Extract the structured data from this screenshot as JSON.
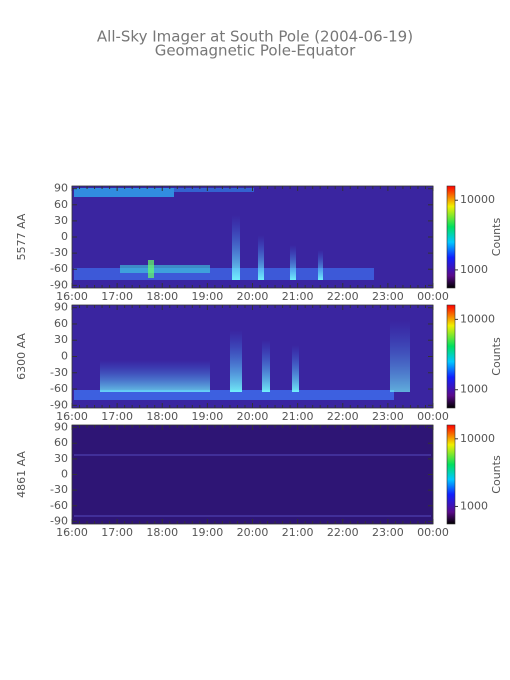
{
  "title": "All-Sky Imager at South Pole (2004-06-19)",
  "subtitle": "Geomagnetic Pole-Equator",
  "chart_data": [
    {
      "type": "heatmap",
      "ylabel": "5577 AA",
      "xticks": [
        "16:00",
        "17:00",
        "18:00",
        "19:00",
        "20:00",
        "21:00",
        "22:00",
        "23:00",
        "00:00"
      ],
      "ylim": [
        -95,
        95
      ],
      "yticks": [
        90,
        60,
        30,
        0,
        -30,
        -60,
        -90
      ],
      "colorbar_label": "Counts",
      "colorbar_log": true,
      "colorbar_lim": [
        550,
        16000
      ],
      "colorbar_ticks": [
        1000,
        10000
      ]
    },
    {
      "type": "heatmap",
      "ylabel": "6300 AA",
      "xticks": [
        "16:00",
        "17:00",
        "18:00",
        "19:00",
        "20:00",
        "21:00",
        "22:00",
        "23:00",
        "00:00"
      ],
      "ylim": [
        -95,
        95
      ],
      "yticks": [
        90,
        60,
        30,
        0,
        -30,
        -60,
        -90
      ],
      "colorbar_label": "Counts",
      "colorbar_log": true,
      "colorbar_lim": [
        550,
        16000
      ],
      "colorbar_ticks": [
        1000,
        10000
      ]
    },
    {
      "type": "heatmap",
      "ylabel": "4861 AA",
      "xticks": [
        "16:00",
        "17:00",
        "18:00",
        "19:00",
        "20:00",
        "21:00",
        "22:00",
        "23:00",
        "00:00"
      ],
      "ylim": [
        -95,
        95
      ],
      "yticks": [
        90,
        60,
        30,
        0,
        -30,
        -60,
        -90
      ],
      "colorbar_label": "Counts",
      "colorbar_log": true,
      "colorbar_lim": [
        550,
        16000
      ],
      "colorbar_ticks": [
        1000,
        10000
      ]
    }
  ]
}
